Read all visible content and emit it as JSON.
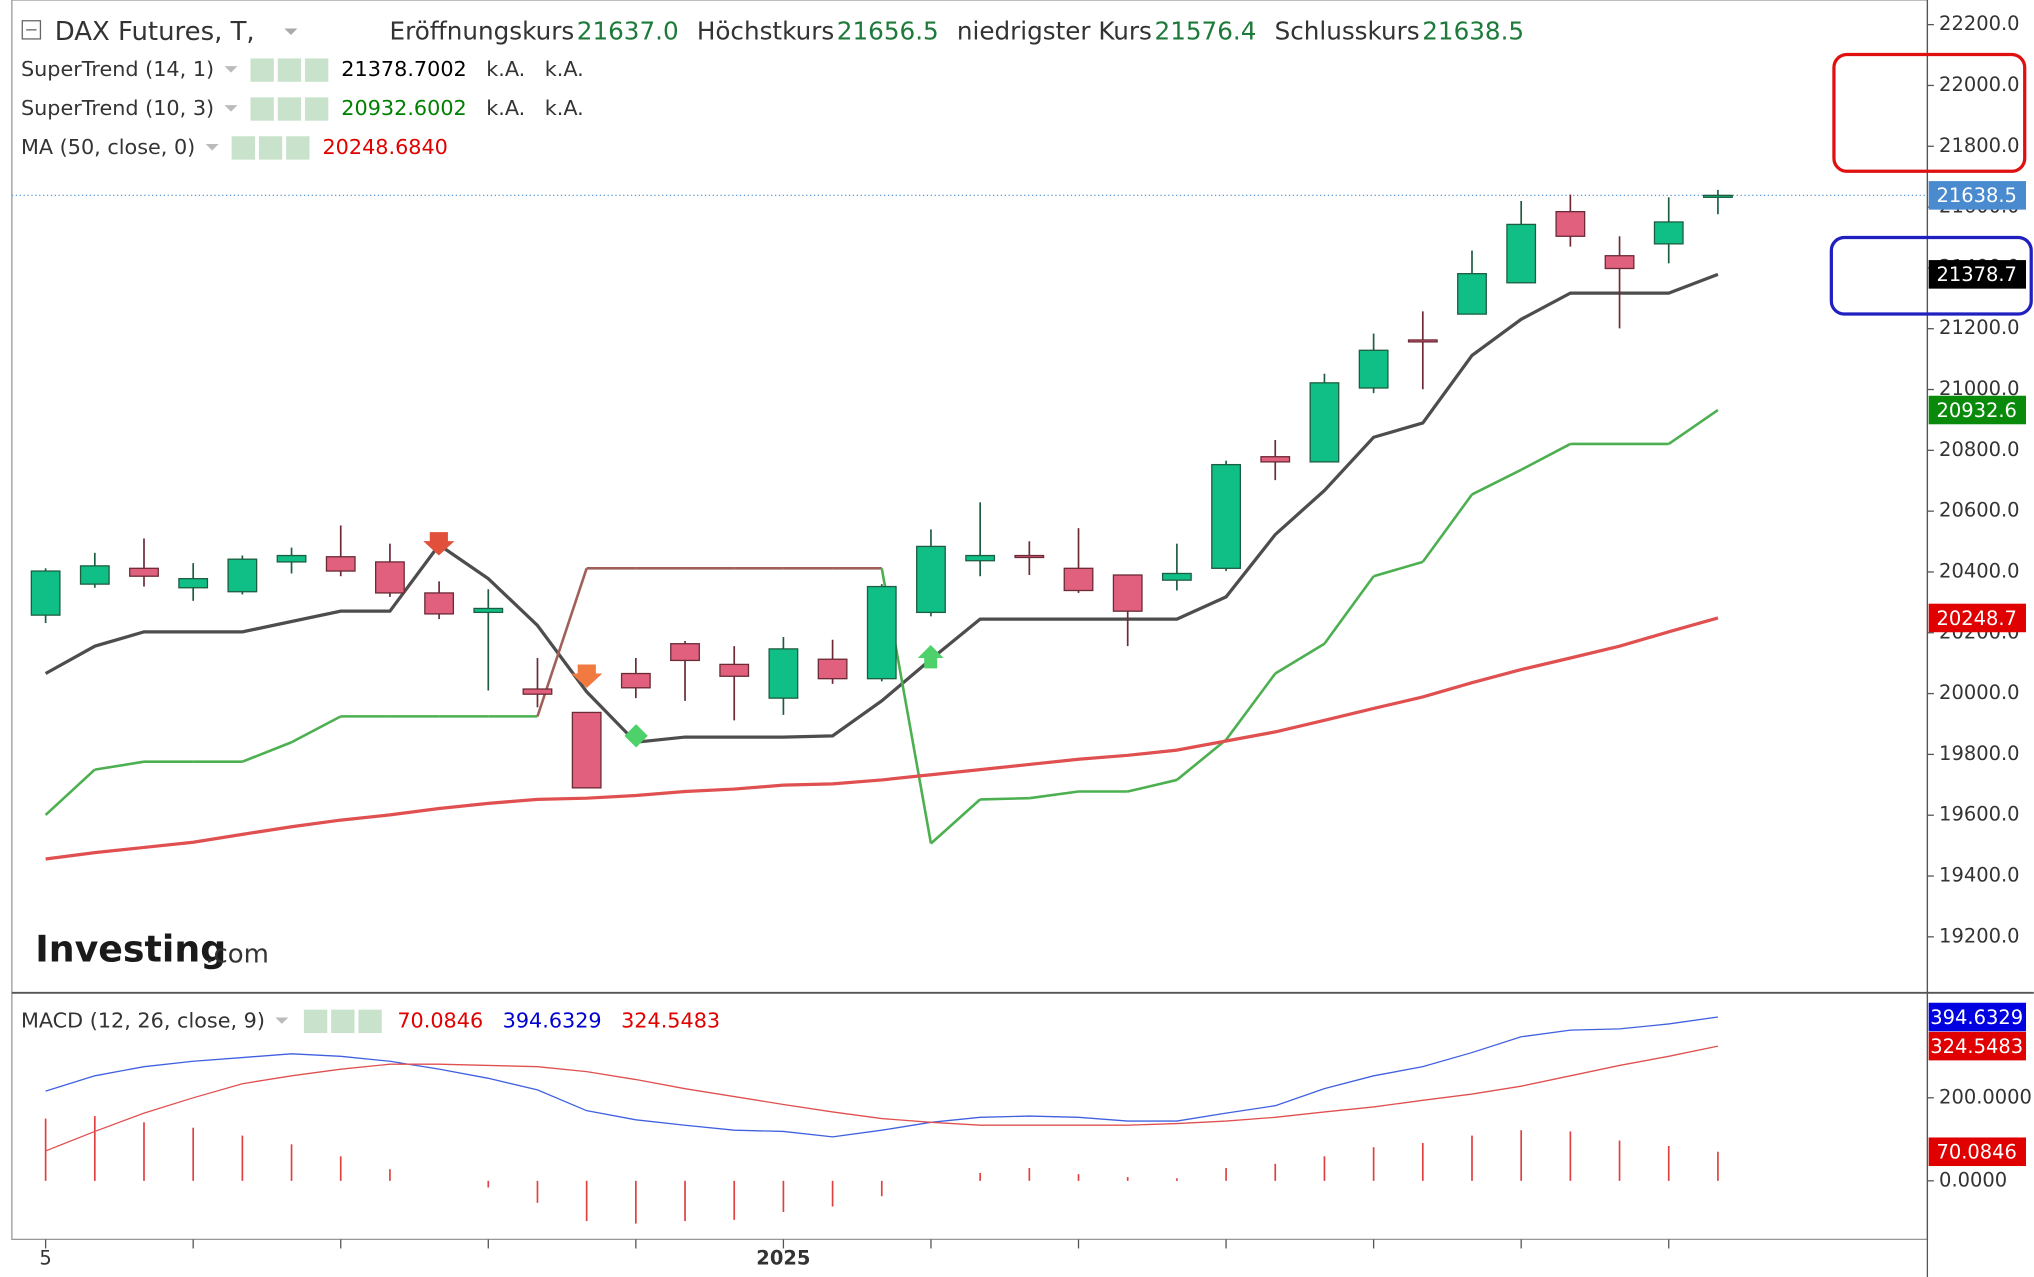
{
  "chart_data": [
    {
      "type": "candlestick",
      "title": "DAX Futures, T,",
      "ohlc_legend": [
        {
          "label": "Eröffnungskurs",
          "value": "21637.0"
        },
        {
          "label": "Höchstkurs",
          "value": "21656.5"
        },
        {
          "label": "niedrigster Kurs",
          "value": "21576.4"
        },
        {
          "label": "Schlusskurs",
          "value": "21638.5"
        }
      ],
      "open": [
        20258,
        20360,
        20412,
        20348,
        20335,
        20433,
        20450,
        20433,
        20331,
        20267,
        20015,
        19938,
        20066,
        20164,
        20096,
        19985,
        20113,
        20049,
        20267,
        20437,
        20454,
        20412,
        20390,
        20373,
        20412,
        20779,
        20762,
        21005,
        21163,
        21248,
        21351,
        21585,
        21440,
        21479,
        21637.0
      ],
      "high": [
        20412,
        20463,
        20510,
        20429,
        20454,
        20480,
        20553,
        20493,
        20369,
        20343,
        20117,
        19938,
        20117,
        20173,
        20156,
        20186,
        20177,
        20360,
        20540,
        20629,
        20501,
        20544,
        20390,
        20493,
        20766,
        20834,
        21052,
        21184,
        21257,
        21457,
        21620,
        21641,
        21504,
        21632,
        21656.5
      ],
      "low": [
        20232,
        20348,
        20352,
        20305,
        20326,
        20395,
        20386,
        20318,
        20245,
        20010,
        19955,
        19690,
        19985,
        19976,
        19912,
        19930,
        20032,
        20040,
        20254,
        20386,
        20390,
        20331,
        20156,
        20339,
        20403,
        20702,
        20762,
        20988,
        21001,
        21248,
        21351,
        21470,
        21201,
        21415,
        21576.4
      ],
      "close": [
        20403,
        20420,
        20386,
        20378,
        20442,
        20454,
        20403,
        20331,
        20262,
        20280,
        19998,
        19690,
        20019,
        20109,
        20057,
        20147,
        20049,
        20352,
        20484,
        20454,
        20450,
        20339,
        20271,
        20395,
        20753,
        20762,
        21022,
        21129,
        21159,
        21381,
        21543,
        21504,
        21398,
        21551,
        21638.5
      ],
      "up_color": "#0fbf86",
      "down_color": "#e0607e",
      "series": [
        {
          "name": "SuperTrend (14, 1)",
          "color": "#4d4d4d",
          "legend_color": "#000000",
          "legend_values": [
            "21378.7002",
            "k.A.",
            "k.A."
          ],
          "values": [
            20066,
            20156,
            20203,
            20203,
            20203,
            20237,
            20271,
            20271,
            20489,
            20378,
            20224,
            20006,
            19840,
            19857,
            19857,
            19857,
            19861,
            19976,
            20113,
            20245,
            20245,
            20245,
            20245,
            20245,
            20318,
            20523,
            20668,
            20843,
            20890,
            21112,
            21231,
            21317,
            21317,
            21317,
            21378.7
          ]
        },
        {
          "name": "SuperTrend (10, 3)",
          "color": "#4caf50",
          "legend_color": "#008000",
          "legend_values": [
            "20932.6002",
            "k.A.",
            "k.A."
          ],
          "segment_colors": [
            "#4caf50",
            "#4caf50",
            "#4caf50",
            "#4caf50",
            "#4caf50",
            "#4caf50",
            "#4caf50",
            "#4caf50",
            "#4caf50",
            "#4caf50",
            "#4caf50",
            "#a0605a",
            "#a0605a",
            "#a0605a",
            "#a0605a",
            "#a0605a",
            "#a0605a",
            "#a0605a",
            "#4caf50",
            "#4caf50",
            "#4caf50",
            "#4caf50",
            "#4caf50",
            "#4caf50",
            "#4caf50",
            "#4caf50",
            "#4caf50",
            "#4caf50",
            "#4caf50",
            "#4caf50",
            "#4caf50",
            "#4caf50",
            "#4caf50",
            "#4caf50",
            "#4caf50"
          ],
          "values": [
            19601,
            19750,
            19776,
            19776,
            19776,
            19840,
            19925,
            19925,
            19925,
            19925,
            19925,
            20412,
            20412,
            20412,
            20412,
            20412,
            20412,
            20412,
            19507,
            19652,
            19656,
            19678,
            19678,
            19716,
            19848,
            20066,
            20164,
            20386,
            20433,
            20655,
            20736,
            20821,
            20821,
            20821,
            20932.6
          ]
        },
        {
          "name": "MA (50, close, 0)",
          "color": "#e05050",
          "legend_color": "#e00000",
          "legend_values": [
            "20248.6840"
          ],
          "values": [
            19456,
            19477,
            19494,
            19511,
            19537,
            19562,
            19584,
            19601,
            19622,
            19639,
            19652,
            19656,
            19665,
            19678,
            19686,
            19699,
            19703,
            19716,
            19733,
            19750,
            19767,
            19784,
            19797,
            19814,
            19844,
            19874,
            19912,
            19951,
            19989,
            20036,
            20079,
            20117,
            20156,
            20203,
            20248.7
          ]
        }
      ],
      "price_labels": [
        {
          "value": 21638.5,
          "label": "21638.5",
          "color": "#4a8bd0"
        },
        {
          "value": 21378.7,
          "label": "21378.7",
          "color": "#000000"
        },
        {
          "value": 20932.6,
          "label": "20932.6",
          "color": "#0a8a0a"
        },
        {
          "value": 20248.7,
          "label": "20248.7",
          "color": "#e00000"
        }
      ],
      "ylim": [
        19016,
        22281
      ],
      "yticks": [
        {
          "value": 22200,
          "label": "22200.0"
        },
        {
          "value": 22000,
          "label": "22000.0"
        },
        {
          "value": 21800,
          "label": "21800.0"
        },
        {
          "value": 21600,
          "label": "21600.0"
        },
        {
          "value": 21400,
          "label": "21400.0"
        },
        {
          "value": 21200,
          "label": "21200.0"
        },
        {
          "value": 21000,
          "label": "21000.0"
        },
        {
          "value": 20800,
          "label": "20800.0"
        },
        {
          "value": 20600,
          "label": "20600.0"
        },
        {
          "value": 20400,
          "label": "20400.0"
        },
        {
          "value": 20200,
          "label": "20200.0"
        },
        {
          "value": 20000,
          "label": "20000.0"
        },
        {
          "value": 19800,
          "label": "19800.0"
        },
        {
          "value": 19600,
          "label": "19600.0"
        },
        {
          "value": 19400,
          "label": "19400.0"
        },
        {
          "value": 19200,
          "label": "19200.0"
        }
      ],
      "watermark": [
        "Investing",
        ".com"
      ]
    },
    {
      "type": "macd",
      "title": "MACD (12, 26, close, 9)",
      "legend_values": [
        {
          "text": "70.0846",
          "color": "#e00000"
        },
        {
          "text": "394.6329",
          "color": "#0000d0"
        },
        {
          "text": "324.5483",
          "color": "#e00000"
        }
      ],
      "categories": [
        "5",
        null,
        null,
        null,
        null,
        null,
        null,
        null,
        null,
        null,
        null,
        null,
        null,
        null,
        null,
        "2025",
        null,
        null,
        null,
        null,
        null,
        null,
        null,
        null,
        null,
        null,
        null,
        null,
        null,
        null,
        null,
        null,
        null,
        null,
        null
      ],
      "series": [
        {
          "color": "#4060e0",
          "values": [
            216,
            253,
            275,
            288,
            297,
            306,
            300,
            288,
            269,
            247,
            219,
            169,
            147,
            134,
            122,
            119,
            106,
            122,
            141,
            153,
            156,
            153,
            144,
            144,
            163,
            181,
            222,
            253,
            275,
            309,
            347,
            363,
            366,
            378,
            394.6329
          ]
        },
        {
          "color": "#e05050",
          "values": [
            72,
            119,
            163,
            200,
            234,
            253,
            269,
            281,
            281,
            278,
            275,
            263,
            244,
            222,
            203,
            184,
            166,
            150,
            141,
            134,
            134,
            134,
            134,
            138,
            144,
            153,
            166,
            178,
            194,
            209,
            228,
            253,
            278,
            300,
            324.5483
          ]
        }
      ],
      "histogram": {
        "color": "#e04040",
        "values": [
          150,
          156,
          141,
          128,
          109,
          88,
          59,
          28,
          0,
          -16,
          -53,
          -97,
          -103,
          -97,
          -94,
          -75,
          -62,
          -37,
          0,
          19,
          31,
          16,
          9,
          6,
          31,
          41,
          59,
          81,
          91,
          109,
          122,
          119,
          97,
          84,
          70.0846
        ]
      },
      "price_labels": [
        {
          "value": 394.6329,
          "label": "394.6329",
          "color": "#0000e0"
        },
        {
          "value": 324.5483,
          "label": "324.5483",
          "color": "#e00000"
        },
        {
          "value": 70.0846,
          "label": "70.0846",
          "color": "#e00000"
        }
      ],
      "ylim": [
        -141,
        453
      ],
      "yticks": [
        {
          "value": 200,
          "label": "200.0000"
        },
        {
          "value": 0,
          "label": "0.0000"
        }
      ]
    }
  ]
}
